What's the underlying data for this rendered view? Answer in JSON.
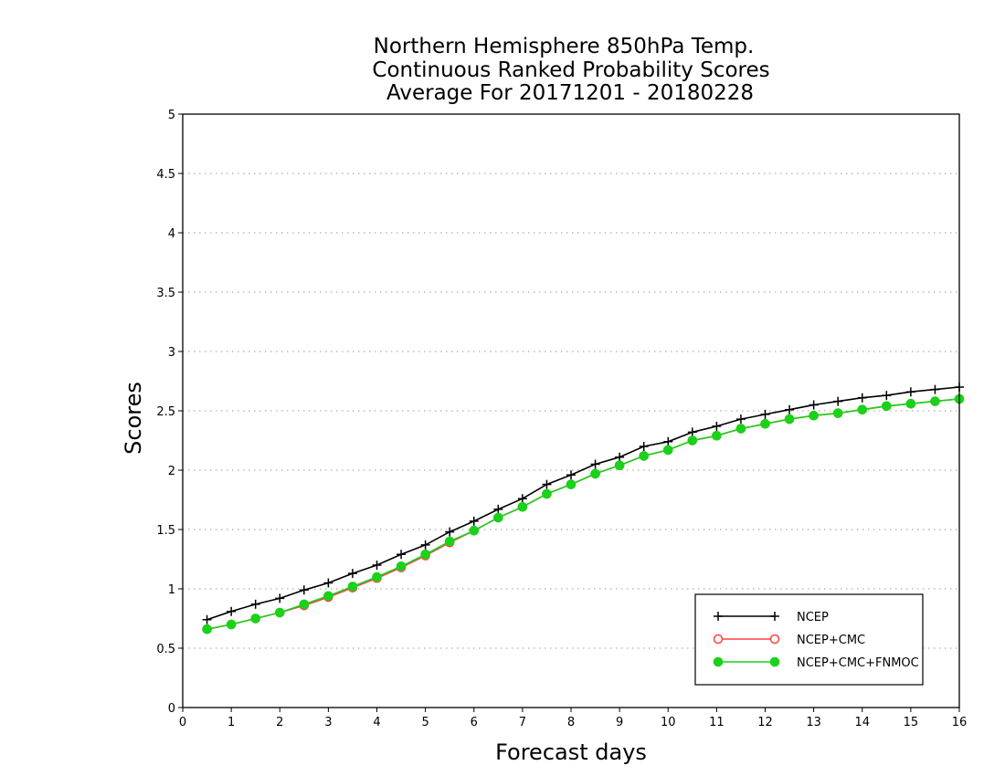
{
  "chart_data": {
    "type": "line",
    "title": [
      "Northern Hemisphere 850hPa Temp.",
      "Continuous Ranked Probability Scores",
      "Average For 20171201 - 20180228"
    ],
    "xlabel": "Forecast days",
    "ylabel": "Scores",
    "xlim": [
      0,
      16
    ],
    "ylim": [
      0,
      5
    ],
    "xticks": [
      0,
      1,
      2,
      3,
      4,
      5,
      6,
      7,
      8,
      9,
      10,
      11,
      12,
      13,
      14,
      15,
      16
    ],
    "yticks": [
      0,
      0.5,
      1,
      1.5,
      2,
      2.5,
      3,
      3.5,
      4,
      4.5,
      5
    ],
    "ytick_labels": [
      "0",
      "0.5",
      "1",
      "1.5",
      "2",
      "2.5",
      "3",
      "3.5",
      "4",
      "4.5",
      "5"
    ],
    "grid": "horizontal dotted",
    "legend_position": "bottom-right",
    "x": [
      0.5,
      1,
      1.5,
      2,
      2.5,
      3,
      3.5,
      4,
      4.5,
      5,
      5.5,
      6,
      6.5,
      7,
      7.5,
      8,
      8.5,
      9,
      9.5,
      10,
      10.5,
      11,
      11.5,
      12,
      12.5,
      13,
      13.5,
      14,
      14.5,
      15,
      15.5,
      16
    ],
    "series": [
      {
        "name": "NCEP",
        "color": "#000000",
        "marker": "plus",
        "values": [
          0.74,
          0.81,
          0.87,
          0.92,
          0.99,
          1.05,
          1.13,
          1.2,
          1.29,
          1.37,
          1.48,
          1.57,
          1.67,
          1.76,
          1.88,
          1.96,
          2.05,
          2.11,
          2.2,
          2.24,
          2.32,
          2.37,
          2.43,
          2.47,
          2.51,
          2.55,
          2.58,
          2.61,
          2.63,
          2.66,
          2.68,
          2.7
        ]
      },
      {
        "name": "NCEP+CMC",
        "color": "#ff4040",
        "marker": "open-circle",
        "values": [
          0.66,
          0.7,
          0.75,
          0.8,
          0.86,
          0.93,
          1.01,
          1.09,
          1.18,
          1.28,
          1.39,
          1.49,
          1.6,
          1.69,
          1.8,
          1.88,
          1.97,
          2.04,
          2.12,
          2.17,
          2.25,
          2.29,
          2.35,
          2.39,
          2.43,
          2.46,
          2.48,
          2.51,
          2.54,
          2.56,
          2.58,
          2.6
        ]
      },
      {
        "name": "NCEP+CMC+FNMOC",
        "color": "#19d219",
        "marker": "filled-circle",
        "values": [
          0.66,
          0.7,
          0.75,
          0.8,
          0.87,
          0.94,
          1.02,
          1.1,
          1.19,
          1.29,
          1.4,
          1.49,
          1.6,
          1.69,
          1.8,
          1.88,
          1.97,
          2.04,
          2.12,
          2.17,
          2.25,
          2.29,
          2.35,
          2.39,
          2.43,
          2.46,
          2.48,
          2.51,
          2.54,
          2.56,
          2.58,
          2.6
        ]
      }
    ]
  }
}
